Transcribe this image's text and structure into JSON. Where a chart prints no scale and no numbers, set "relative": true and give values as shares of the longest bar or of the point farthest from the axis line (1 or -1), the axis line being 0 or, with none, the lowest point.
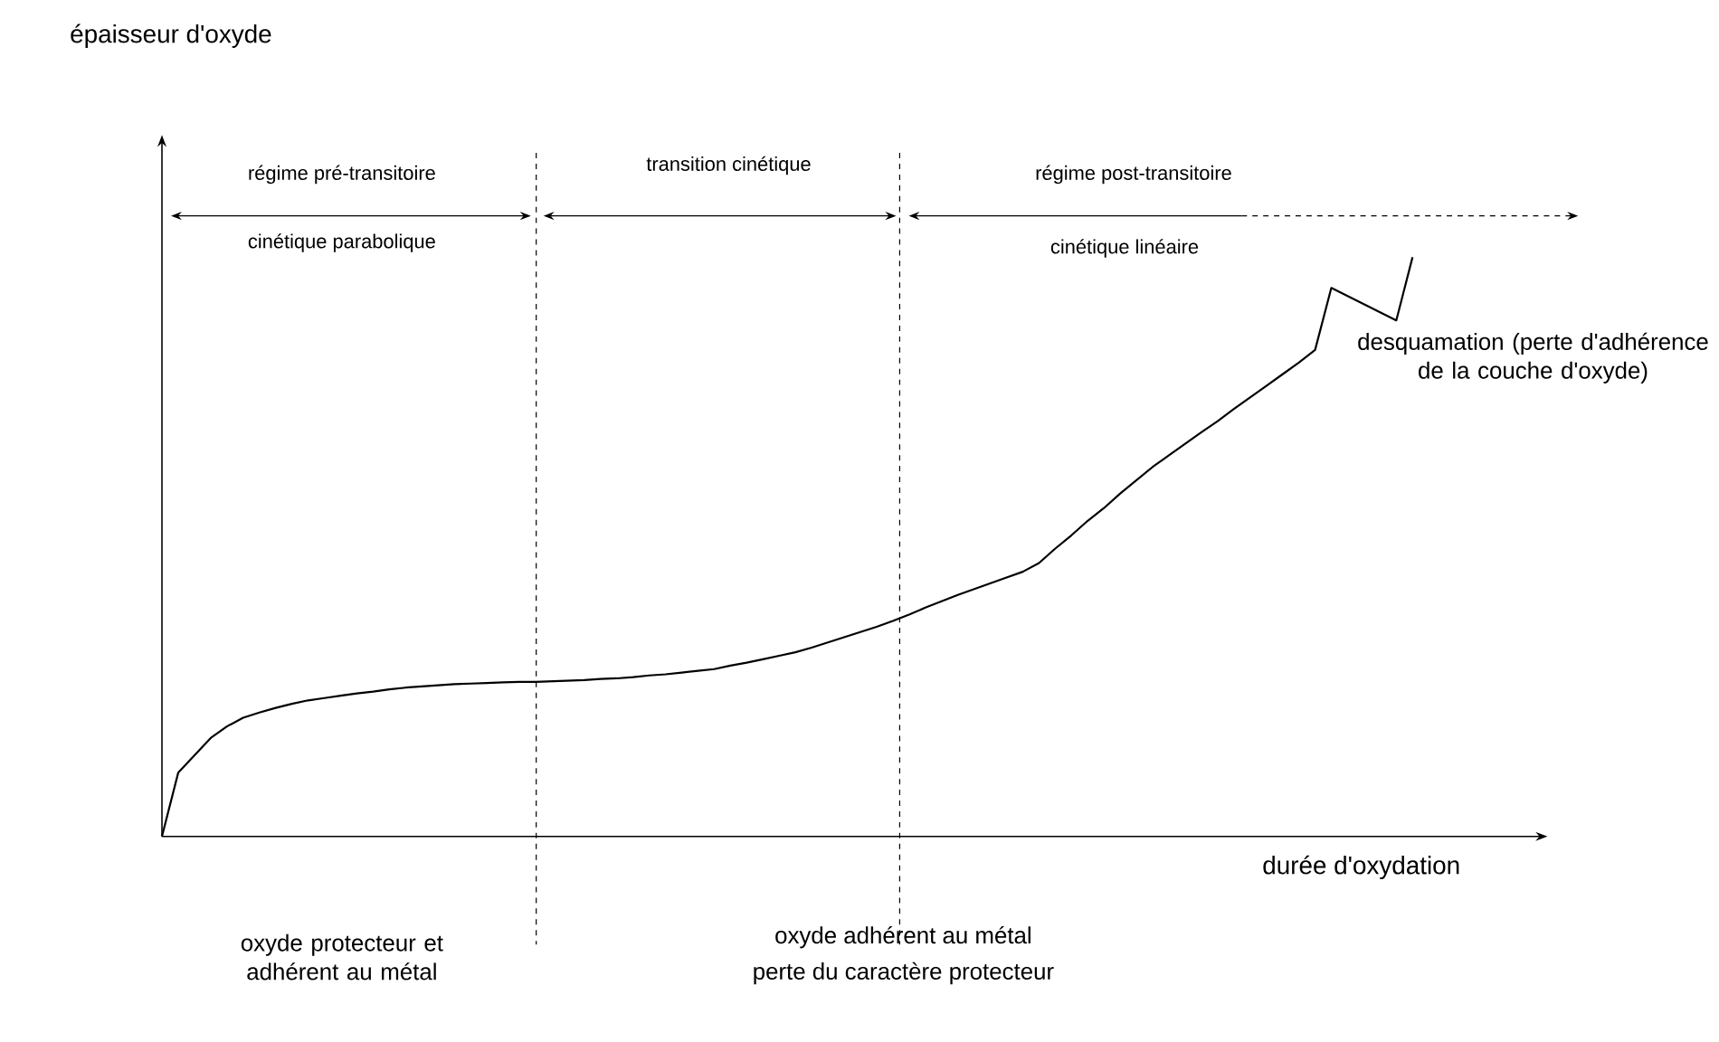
{
  "chart_data": {
    "type": "line",
    "relative": true,
    "xlabel": "durée d'oxydation",
    "categories": [
      null,
      null,
      null,
      null,
      null,
      null,
      null,
      null,
      null,
      null,
      null,
      null,
      null,
      null,
      null,
      null,
      null,
      null,
      null,
      null,
      null,
      null,
      null,
      null,
      null,
      null,
      null,
      null,
      null,
      null,
      null,
      null,
      null,
      null,
      null,
      null,
      null,
      null,
      null,
      null,
      null,
      null,
      null,
      null,
      null,
      null,
      null,
      null,
      null,
      null,
      null,
      null,
      null,
      null,
      null,
      null,
      null,
      null,
      null,
      null,
      null,
      null,
      null,
      null,
      null,
      null,
      null,
      null,
      null,
      null,
      null,
      null,
      null,
      null,
      null,
      null,
      null,
      null
    ],
    "series": [
      {
        "color": "#000000",
        "values": [
          0,
          0.11,
          0.14,
          0.17,
          0.19,
          0.205,
          0.214,
          0.222,
          0.229,
          0.235,
          0.239,
          0.243,
          0.247,
          0.25,
          0.254,
          0.257,
          0.259,
          0.261,
          0.263,
          0.264,
          0.265,
          0.266,
          0.267,
          0.267,
          0.268,
          0.269,
          0.27,
          0.272,
          0.273,
          0.275,
          0.278,
          0.28,
          0.283,
          0.286,
          0.289,
          0.295,
          0.3,
          0.306,
          0.312,
          0.318,
          0.326,
          0.335,
          0.344,
          0.353,
          0.362,
          0.372,
          0.383,
          0.395,
          0.406,
          0.417,
          0.427,
          0.437,
          0.447,
          0.457,
          0.472,
          0.497,
          0.52,
          0.545,
          0.567,
          0.592,
          0.615,
          0.638,
          0.658,
          0.678,
          0.698,
          0.717,
          0.738,
          0.758,
          0.778,
          0.798,
          0.818,
          0.84,
          0.947,
          0.933,
          0.919,
          0.905,
          0.891,
          1.0
        ]
      }
    ],
    "annotations": [
      "régime pré-transitoire",
      "cinétique parabolique",
      "transition cinétique",
      "régime post-transitoire",
      "cinétique linéaire",
      "desquamation (perte d'adhérence de la couche d'oxyde)",
      "oxyde protecteur et adhérent au métal",
      "oxyde adhérent au métal",
      "perte du caractère protecteur",
      "épaisseur d'oxyde"
    ]
  }
}
